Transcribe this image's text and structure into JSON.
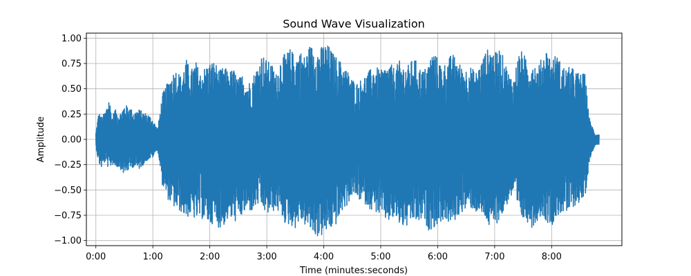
{
  "chart_data": {
    "type": "line",
    "title": "Sound Wave Visualization",
    "xlabel": "Time (minutes:seconds)",
    "ylabel": "Amplitude",
    "xlim": [
      -10,
      554
    ],
    "ylim": [
      -1.05,
      1.05
    ],
    "grid": true,
    "x_ticks": [
      {
        "value": 0,
        "label": "0:00"
      },
      {
        "value": 60,
        "label": "1:00"
      },
      {
        "value": 120,
        "label": "2:00"
      },
      {
        "value": 180,
        "label": "3:00"
      },
      {
        "value": 240,
        "label": "4:00"
      },
      {
        "value": 300,
        "label": "5:00"
      },
      {
        "value": 360,
        "label": "6:00"
      },
      {
        "value": 420,
        "label": "7:00"
      },
      {
        "value": 480,
        "label": "8:00"
      }
    ],
    "y_ticks": [
      {
        "value": 1.0,
        "label": "1.00"
      },
      {
        "value": 0.75,
        "label": "0.75"
      },
      {
        "value": 0.5,
        "label": "0.50"
      },
      {
        "value": 0.25,
        "label": "0.25"
      },
      {
        "value": 0.0,
        "label": "0.00"
      },
      {
        "value": -0.25,
        "label": "−0.25"
      },
      {
        "value": -0.5,
        "label": "−0.50"
      },
      {
        "value": -0.75,
        "label": "−0.75"
      },
      {
        "value": -1.0,
        "label": "−1.00"
      }
    ],
    "series": [
      {
        "color": "#1f77b4",
        "envelope": {
          "x": [
            0,
            3,
            6,
            10,
            14,
            17,
            20,
            25,
            30,
            35,
            40,
            45,
            50,
            55,
            60,
            65,
            68,
            70,
            75,
            80,
            85,
            90,
            95,
            100,
            105,
            110,
            115,
            120,
            125,
            130,
            135,
            140,
            145,
            150,
            155,
            160,
            165,
            170,
            175,
            180,
            185,
            190,
            195,
            200,
            205,
            210,
            215,
            220,
            225,
            230,
            235,
            240,
            245,
            250,
            255,
            260,
            265,
            270,
            275,
            280,
            285,
            290,
            295,
            300,
            305,
            310,
            315,
            320,
            325,
            330,
            335,
            340,
            345,
            350,
            355,
            360,
            365,
            370,
            375,
            380,
            385,
            390,
            395,
            400,
            405,
            410,
            415,
            420,
            425,
            430,
            435,
            440,
            445,
            450,
            455,
            460,
            465,
            470,
            475,
            480,
            485,
            490,
            495,
            500,
            505,
            510,
            515,
            520,
            522,
            526,
            530
          ],
          "upper": [
            0.07,
            0.27,
            0.22,
            0.28,
            0.42,
            0.22,
            0.3,
            0.25,
            0.34,
            0.33,
            0.27,
            0.3,
            0.27,
            0.25,
            0.2,
            0.1,
            0.3,
            0.45,
            0.55,
            0.65,
            0.7,
            0.62,
            0.8,
            0.68,
            0.78,
            0.66,
            0.72,
            0.76,
            0.78,
            0.68,
            0.72,
            0.67,
            0.7,
            0.6,
            0.65,
            0.55,
            0.62,
            0.72,
            0.85,
            0.78,
            0.75,
            0.65,
            0.82,
            0.85,
            0.9,
            0.82,
            0.88,
            0.82,
            0.93,
            0.92,
            0.88,
            0.95,
            0.93,
            0.85,
            0.8,
            0.75,
            0.68,
            0.6,
            0.56,
            0.6,
            0.65,
            0.7,
            0.72,
            0.68,
            0.72,
            0.75,
            0.7,
            0.78,
            0.72,
            0.74,
            0.82,
            0.72,
            0.68,
            0.75,
            0.88,
            0.8,
            0.72,
            0.78,
            0.85,
            0.8,
            0.72,
            0.7,
            0.72,
            0.66,
            0.75,
            0.86,
            0.92,
            0.85,
            0.9,
            0.8,
            0.65,
            0.6,
            0.85,
            0.88,
            0.72,
            0.8,
            0.7,
            0.82,
            0.9,
            0.78,
            0.85,
            0.75,
            0.7,
            0.72,
            0.68,
            0.65,
            0.65,
            0.2,
            0.15,
            0.05,
            0.05
          ],
          "lower": [
            -0.07,
            -0.24,
            -0.28,
            -0.22,
            -0.3,
            -0.24,
            -0.27,
            -0.28,
            -0.35,
            -0.3,
            -0.27,
            -0.3,
            -0.25,
            -0.2,
            -0.18,
            -0.1,
            -0.3,
            -0.45,
            -0.58,
            -0.65,
            -0.7,
            -0.72,
            -0.78,
            -0.75,
            -0.8,
            -0.78,
            -0.8,
            -0.85,
            -0.82,
            -0.88,
            -0.85,
            -0.78,
            -0.82,
            -0.8,
            -0.75,
            -0.7,
            -0.72,
            -0.65,
            -0.68,
            -0.75,
            -0.72,
            -0.7,
            -0.75,
            -0.85,
            -0.85,
            -0.88,
            -0.8,
            -0.85,
            -0.9,
            -0.95,
            -0.97,
            -0.95,
            -0.9,
            -0.88,
            -0.82,
            -0.7,
            -0.65,
            -0.55,
            -0.58,
            -0.62,
            -0.65,
            -0.7,
            -0.72,
            -0.76,
            -0.8,
            -0.82,
            -0.78,
            -0.85,
            -0.88,
            -0.86,
            -0.8,
            -0.84,
            -0.78,
            -0.9,
            -0.88,
            -0.85,
            -0.8,
            -0.82,
            -0.85,
            -0.78,
            -0.72,
            -0.7,
            -0.68,
            -0.72,
            -0.75,
            -0.78,
            -0.9,
            -0.85,
            -0.8,
            -0.72,
            -0.6,
            -0.55,
            -0.75,
            -0.8,
            -0.82,
            -0.88,
            -0.8,
            -0.75,
            -0.82,
            -0.85,
            -0.78,
            -0.72,
            -0.75,
            -0.7,
            -0.65,
            -0.62,
            -0.6,
            -0.2,
            -0.15,
            -0.05,
            -0.05
          ]
        }
      }
    ]
  }
}
